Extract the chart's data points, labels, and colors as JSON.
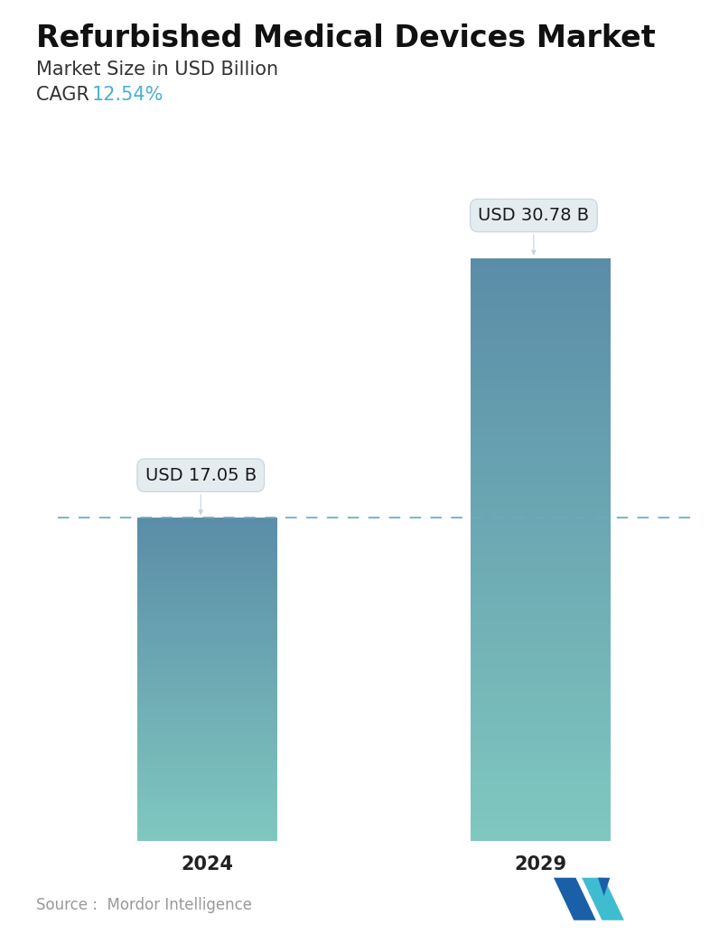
{
  "title": "Refurbished Medical Devices Market",
  "subtitle": "Market Size in USD Billion",
  "cagr_label": "CAGR ",
  "cagr_value": "12.54%",
  "cagr_color": "#4BAFD4",
  "categories": [
    "2024",
    "2029"
  ],
  "values": [
    17.05,
    30.78
  ],
  "labels": [
    "USD 17.05 B",
    "USD 30.78 B"
  ],
  "bar_color_top": "#5B8DA8",
  "bar_color_bottom": "#80C8C0",
  "dashed_line_color": "#6AAAC8",
  "dashed_line_y": 17.05,
  "source_text": "Source :  Mordor Intelligence",
  "source_color": "#999999",
  "bg_color": "#ffffff",
  "title_fontsize": 24,
  "subtitle_fontsize": 15,
  "cagr_fontsize": 15,
  "tick_fontsize": 15,
  "label_fontsize": 14,
  "source_fontsize": 12,
  "ylim": [
    0,
    38
  ],
  "bar_width": 0.42,
  "xlim": [
    -0.45,
    1.45
  ]
}
